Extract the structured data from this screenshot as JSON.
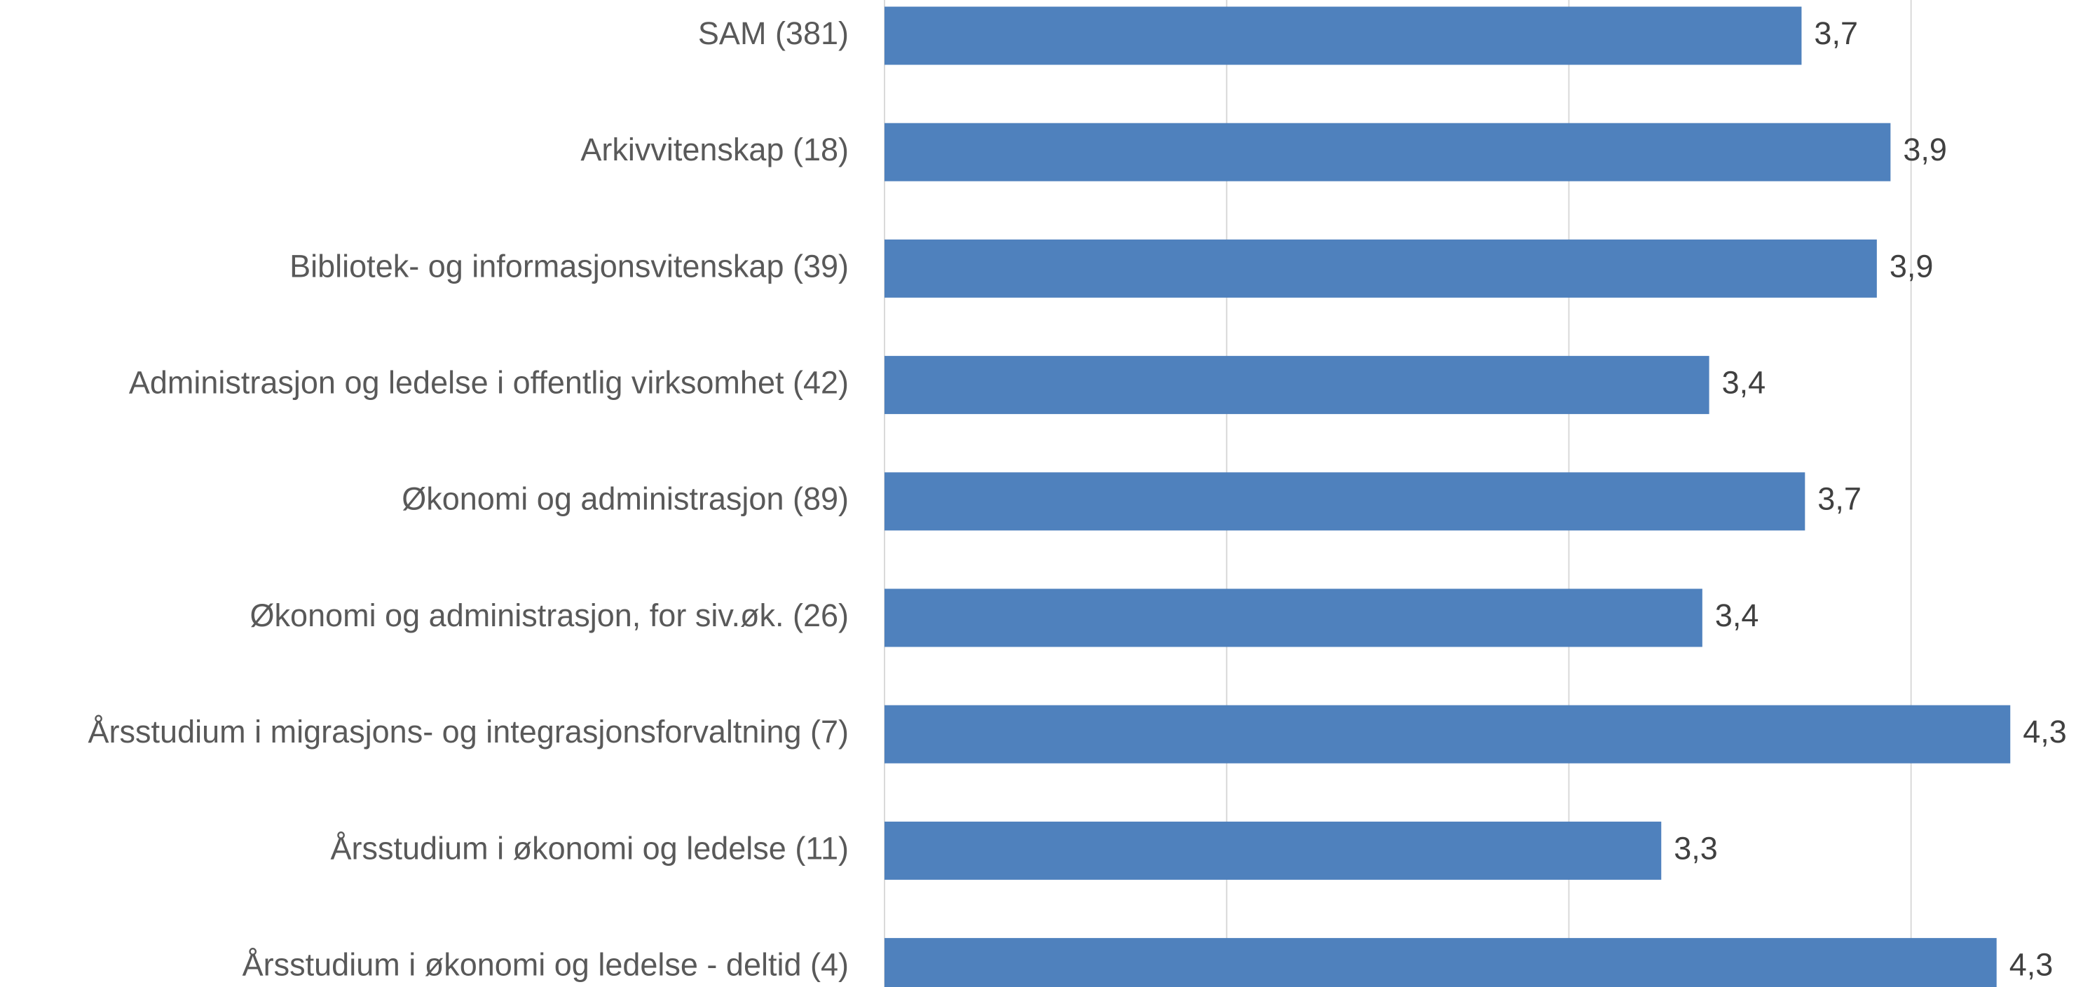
{
  "chart_data": {
    "type": "bar",
    "orientation": "horizontal",
    "categories": [
      "SAM (381)",
      "Arkivvitenskap (18)",
      "Bibliotek- og informasjonsvitenskap (39)",
      "Administrasjon og ledelse i offentlig virksomhet (42)",
      "Økonomi og administrasjon (89)",
      "Økonomi og administrasjon, for siv.øk. (26)",
      "Årsstudium i migrasjons- og integrasjonsforvaltning (7)",
      "Årsstudium i økonomi og ledelse (11)",
      "Årsstudium i økonomi og ledelse - deltid (4)"
    ],
    "values": [
      3.68,
      3.94,
      3.9,
      3.41,
      3.69,
      3.39,
      4.29,
      3.27,
      4.25
    ],
    "value_labels": [
      "3,7",
      "3,9",
      "3,9",
      "3,4",
      "3,7",
      "3,4",
      "4,3",
      "3,3",
      "4,3"
    ],
    "color": "#4f81bd",
    "xlim": [
      1,
      4.48
    ],
    "xticks": [
      1,
      2,
      3,
      4
    ],
    "grid": true
  }
}
